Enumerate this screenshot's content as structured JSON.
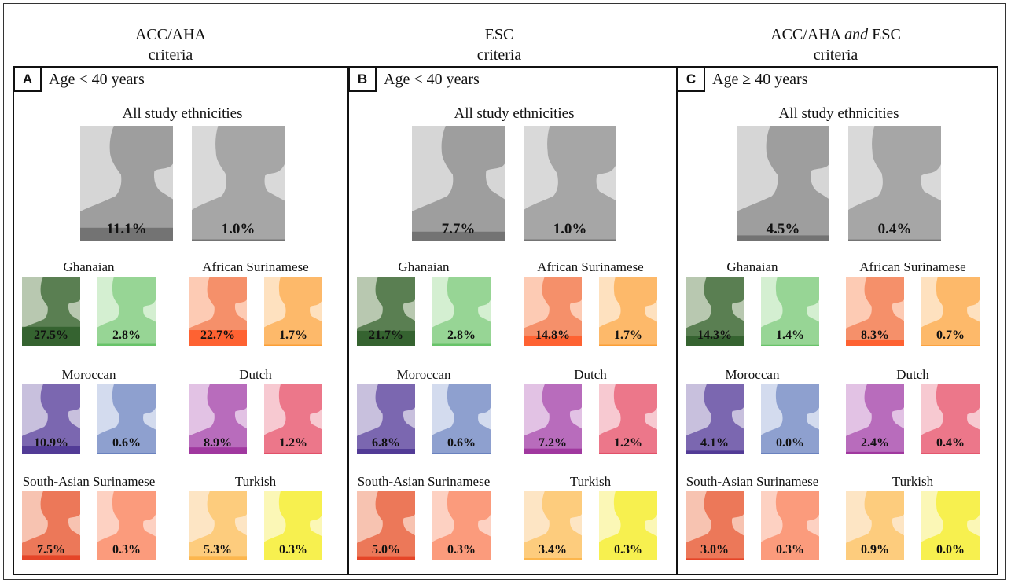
{
  "columns": [
    {
      "line1": "ACC/AHA",
      "line2": "criteria"
    },
    {
      "line1": "ESC",
      "line2": "criteria"
    },
    {
      "line1_a": "ACC/AHA ",
      "line1_b": "and",
      "line1_c": " ESC",
      "line2": "criteria"
    }
  ],
  "chart_data": {
    "type": "bar",
    "title": "",
    "panels": [
      {
        "label": "A",
        "age": "Age < 40 years",
        "all_label": "All study ethnicities",
        "all": {
          "men": 11.1,
          "women": 1.0,
          "men_label": "11.1%",
          "women_label": "1.0%"
        },
        "groups": [
          {
            "name": "Ghanaian",
            "men": 27.5,
            "women": 2.8,
            "men_label": "27.5%",
            "women_label": "2.8%"
          },
          {
            "name": "African Surinamese",
            "men": 22.7,
            "women": 1.7,
            "men_label": "22.7%",
            "women_label": "1.7%"
          },
          {
            "name": "Moroccan",
            "men": 10.9,
            "women": 0.6,
            "men_label": "10.9%",
            "women_label": "0.6%"
          },
          {
            "name": "Dutch",
            "men": 8.9,
            "women": 1.2,
            "men_label": "8.9%",
            "women_label": "1.2%"
          },
          {
            "name": "South-Asian Surinamese",
            "men": 7.5,
            "women": 0.3,
            "men_label": "7.5%",
            "women_label": "0.3%"
          },
          {
            "name": "Turkish",
            "men": 5.3,
            "women": 0.3,
            "men_label": "5.3%",
            "women_label": "0.3%"
          }
        ]
      },
      {
        "label": "B",
        "age": "Age < 40 years",
        "all_label": "All study ethnicities",
        "all": {
          "men": 7.7,
          "women": 1.0,
          "men_label": "7.7%",
          "women_label": "1.0%"
        },
        "groups": [
          {
            "name": "Ghanaian",
            "men": 21.7,
            "women": 2.8,
            "men_label": "21.7%",
            "women_label": "2.8%"
          },
          {
            "name": "African Surinamese",
            "men": 14.8,
            "women": 1.7,
            "men_label": "14.8%",
            "women_label": "1.7%"
          },
          {
            "name": "Moroccan",
            "men": 6.8,
            "women": 0.6,
            "men_label": "6.8%",
            "women_label": "0.6%"
          },
          {
            "name": "Dutch",
            "men": 7.2,
            "women": 1.2,
            "men_label": "7.2%",
            "women_label": "1.2%"
          },
          {
            "name": "South-Asian Surinamese",
            "men": 5.0,
            "women": 0.3,
            "men_label": "5.0%",
            "women_label": "0.3%"
          },
          {
            "name": "Turkish",
            "men": 3.4,
            "women": 0.3,
            "men_label": "3.4%",
            "women_label": "0.3%"
          }
        ]
      },
      {
        "label": "C",
        "age": "Age ≥ 40 years",
        "all_label": "All study ethnicities",
        "all": {
          "men": 4.5,
          "women": 0.4,
          "men_label": "4.5%",
          "women_label": "0.4%"
        },
        "groups": [
          {
            "name": "Ghanaian",
            "men": 14.3,
            "women": 1.4,
            "men_label": "14.3%",
            "women_label": "1.4%"
          },
          {
            "name": "African Surinamese",
            "men": 8.3,
            "women": 0.7,
            "men_label": "8.3%",
            "women_label": "0.7%"
          },
          {
            "name": "Moroccan",
            "men": 4.1,
            "women": 0.0,
            "men_label": "4.1%",
            "women_label": "0.0%"
          },
          {
            "name": "Dutch",
            "men": 2.4,
            "women": 0.4,
            "men_label": "2.4%",
            "women_label": "0.4%"
          },
          {
            "name": "South-Asian Surinamese",
            "men": 3.0,
            "women": 0.3,
            "men_label": "3.0%",
            "women_label": "0.3%"
          },
          {
            "name": "Turkish",
            "men": 0.9,
            "women": 0.0,
            "men_label": "0.9%",
            "women_label": "0.0%"
          }
        ]
      }
    ]
  },
  "colors": {
    "All study ethnicities": {
      "men": "#9e9e9e",
      "women": "#a6a6a6",
      "men_fill": "#6b6b6b",
      "women_fill": "#6b6b6b",
      "men_bg": "#d6d6d6",
      "women_bg": "#d9d9d9"
    },
    "Ghanaian": {
      "men": "#5a7f52",
      "women": "#97d595",
      "men_fill": "#2f5e2a",
      "women_fill": "#5fbf62",
      "men_bg": "#b8c8b0",
      "women_bg": "#d4efd1"
    },
    "African Surinamese": {
      "men": "#f5906a",
      "women": "#fdb96a",
      "men_fill": "#ff5a28",
      "women_fill": "#fa9a2e",
      "men_bg": "#fdcbb4",
      "women_bg": "#fee1bf"
    },
    "Moroccan": {
      "men": "#7b67b0",
      "women": "#8ea0cf",
      "men_fill": "#4b3492",
      "women_fill": "#5b76b8",
      "men_bg": "#c8c0dd",
      "women_bg": "#d3dbee"
    },
    "Dutch": {
      "men": "#b86cbc",
      "women": "#ec778a",
      "men_fill": "#9b2f9a",
      "women_fill": "#e04a63",
      "men_bg": "#e2c2e4",
      "women_bg": "#f7c9d1"
    },
    "South-Asian Surinamese": {
      "men": "#ec7859",
      "women": "#fb9b7c",
      "men_fill": "#e43c20",
      "women_fill": "#f26c45",
      "men_bg": "#f7c3b1",
      "women_bg": "#fdd1c2"
    },
    "Turkish": {
      "men": "#fdcc7d",
      "women": "#f7f04f",
      "men_fill": "#fbb144",
      "women_fill": "#eee52a",
      "men_bg": "#fde5c4",
      "women_bg": "#fbf7b6"
    }
  }
}
